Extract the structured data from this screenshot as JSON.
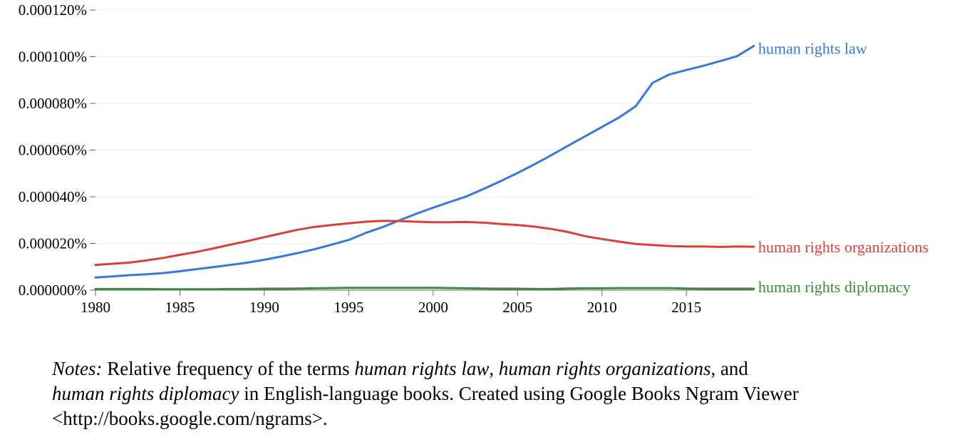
{
  "chart_data": {
    "type": "line",
    "title": "",
    "xlabel": "",
    "ylabel": "",
    "xlim": [
      1980,
      2019
    ],
    "ylim": [
      0,
      0.00012
    ],
    "x_ticks": [
      1980,
      1985,
      1990,
      1995,
      2000,
      2005,
      2010,
      2015
    ],
    "x_tick_labels": [
      "1980",
      "1985",
      "1990",
      "1995",
      "2000",
      "2005",
      "2010",
      "2015"
    ],
    "y_ticks": [
      0,
      2e-05,
      4e-05,
      6e-05,
      8e-05,
      0.0001,
      0.00012
    ],
    "y_tick_labels": [
      "0.000000%",
      "0.000020%",
      "0.000040%",
      "0.000060%",
      "0.000080%",
      "0.000100%",
      "0.000120%"
    ],
    "grid": true,
    "legend": "series labels at right end of lines",
    "x": [
      1980,
      1981,
      1982,
      1983,
      1984,
      1985,
      1986,
      1987,
      1988,
      1989,
      1990,
      1991,
      1992,
      1993,
      1994,
      1995,
      1996,
      1997,
      1998,
      1999,
      2000,
      2001,
      2002,
      2003,
      2004,
      2005,
      2006,
      2007,
      2008,
      2009,
      2010,
      2011,
      2012,
      2013,
      2014,
      2015,
      2016,
      2017,
      2018,
      2019
    ],
    "series": [
      {
        "name": "human rights law",
        "color": "#3579db",
        "values": [
          5.4e-06,
          5.9e-06,
          6.4e-06,
          6.8e-06,
          7.3e-06,
          8.1e-06,
          9e-06,
          9.9e-06,
          1.08e-05,
          1.18e-05,
          1.3e-05,
          1.44e-05,
          1.59e-05,
          1.76e-05,
          1.95e-05,
          2.15e-05,
          2.45e-05,
          2.7e-05,
          2.99e-05,
          3.27e-05,
          3.53e-05,
          3.78e-05,
          4.02e-05,
          4.34e-05,
          4.67e-05,
          5.02e-05,
          5.39e-05,
          5.78e-05,
          6.19e-05,
          6.59e-05,
          6.99e-05,
          7.39e-05,
          7.88e-05,
          8.88e-05,
          9.24e-05,
          9.43e-05,
          9.61e-05,
          9.81e-05,
          0.0001002,
          0.0001046
        ]
      },
      {
        "name": "human rights organizations",
        "color": "#dc3e3a",
        "values": [
          1.08e-05,
          1.13e-05,
          1.18e-05,
          1.27e-05,
          1.38e-05,
          1.51e-05,
          1.64e-05,
          1.79e-05,
          1.95e-05,
          2.1e-05,
          2.27e-05,
          2.43e-05,
          2.59e-05,
          2.71e-05,
          2.79e-05,
          2.86e-05,
          2.93e-05,
          2.97e-05,
          2.96e-05,
          2.93e-05,
          2.91e-05,
          2.91e-05,
          2.92e-05,
          2.89e-05,
          2.83e-05,
          2.79e-05,
          2.72e-05,
          2.62e-05,
          2.49e-05,
          2.31e-05,
          2.19e-05,
          2.08e-05,
          1.98e-05,
          1.93e-05,
          1.89e-05,
          1.87e-05,
          1.87e-05,
          1.85e-05,
          1.87e-05,
          1.86e-05
        ]
      },
      {
        "name": "human rights diplomacy",
        "color": "#3a8c3a",
        "values": [
          5e-07,
          5e-07,
          5e-07,
          5e-07,
          4e-07,
          4e-07,
          4e-07,
          4e-07,
          5e-07,
          5e-07,
          6e-07,
          6e-07,
          7e-07,
          8e-07,
          9e-07,
          1e-06,
          1e-06,
          1e-06,
          1e-06,
          1e-06,
          1e-06,
          9e-07,
          8e-07,
          7e-07,
          6e-07,
          6e-07,
          5e-07,
          5e-07,
          7e-07,
          8e-07,
          8e-07,
          9e-07,
          9e-07,
          9e-07,
          9e-07,
          7e-07,
          6e-07,
          6e-07,
          6e-07,
          6e-07
        ]
      }
    ]
  },
  "notes": {
    "prefix": "Notes:",
    "text1": " Relative frequency of the terms ",
    "term1": "human rights law",
    "sep1": ", ",
    "term2": "human rights organizations",
    "sep2": ", and",
    "term3": "human rights diplomacy",
    "text2": " in English-language books. Created using Google Books Ngram Viewer <http://books.google.com/ngrams>."
  }
}
